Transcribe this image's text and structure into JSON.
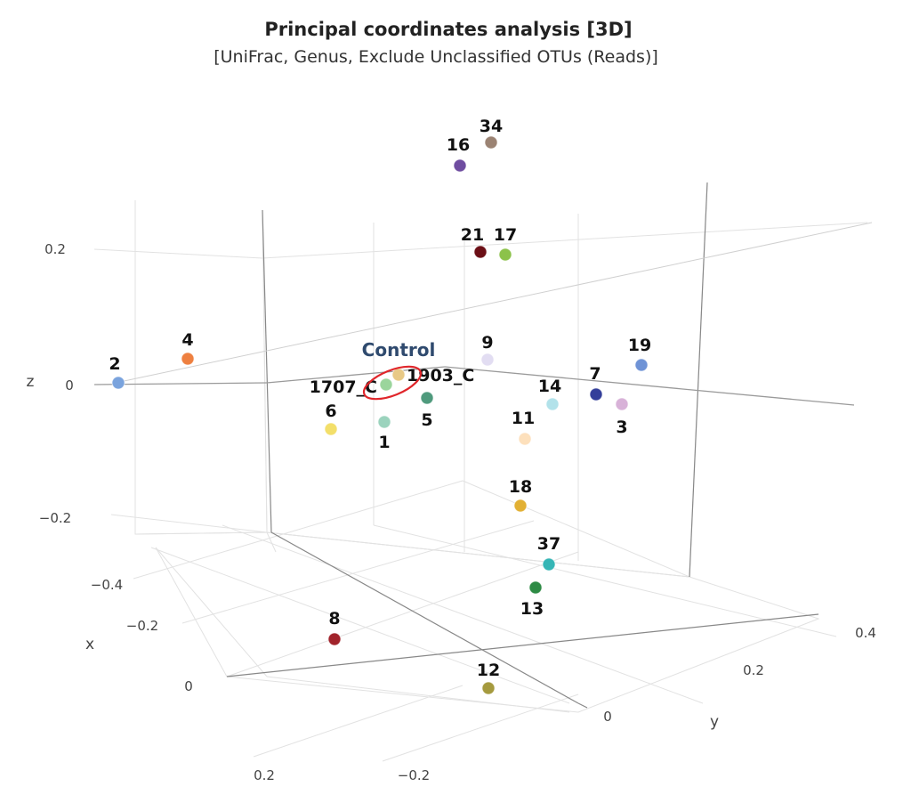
{
  "chart_data": {
    "type": "scatter",
    "title": "Principal coordinates analysis [3D]",
    "subtitle": "[UniFrac, Genus, Exclude Unclassified OTUs (Reads)]",
    "axes": {
      "x": {
        "label": "x",
        "ticks": [
          "−0.4",
          "−0.2",
          "0",
          "0.2"
        ]
      },
      "y": {
        "label": "y",
        "ticks": [
          "−0.2",
          "0",
          "0.2",
          "0.4"
        ]
      },
      "z": {
        "label": "z",
        "ticks": [
          "0.2",
          "0",
          "−0.2"
        ]
      }
    },
    "annotation": {
      "text": "Control",
      "color": "#2f4a6e",
      "ring_color": "#e0262b"
    },
    "points": [
      {
        "label": "34",
        "color": "#9b8373"
      },
      {
        "label": "16",
        "color": "#6f4da0"
      },
      {
        "label": "21",
        "color": "#6b0f16"
      },
      {
        "label": "17",
        "color": "#8cc24a"
      },
      {
        "label": "4",
        "color": "#ee8040"
      },
      {
        "label": "2",
        "color": "#7aa3dd"
      },
      {
        "label": "9",
        "color": "#e2ddf2"
      },
      {
        "label": "19",
        "color": "#6f93d6"
      },
      {
        "label": "1903_C",
        "color": "#e8c986"
      },
      {
        "label": "1707_C",
        "color": "#9bd59c"
      },
      {
        "label": "5",
        "color": "#4f9a7d"
      },
      {
        "label": "6",
        "color": "#f3df6a"
      },
      {
        "label": "1",
        "color": "#9bd3bd"
      },
      {
        "label": "7",
        "color": "#343f9a"
      },
      {
        "label": "14",
        "color": "#b2e2ea"
      },
      {
        "label": "3",
        "color": "#d8b2d8"
      },
      {
        "label": "11",
        "color": "#fde0bc"
      },
      {
        "label": "18",
        "color": "#e2b033"
      },
      {
        "label": "37",
        "color": "#35b5b5"
      },
      {
        "label": "13",
        "color": "#2e8b45"
      },
      {
        "label": "8",
        "color": "#a1232b"
      },
      {
        "label": "12",
        "color": "#a59a3e"
      }
    ]
  }
}
